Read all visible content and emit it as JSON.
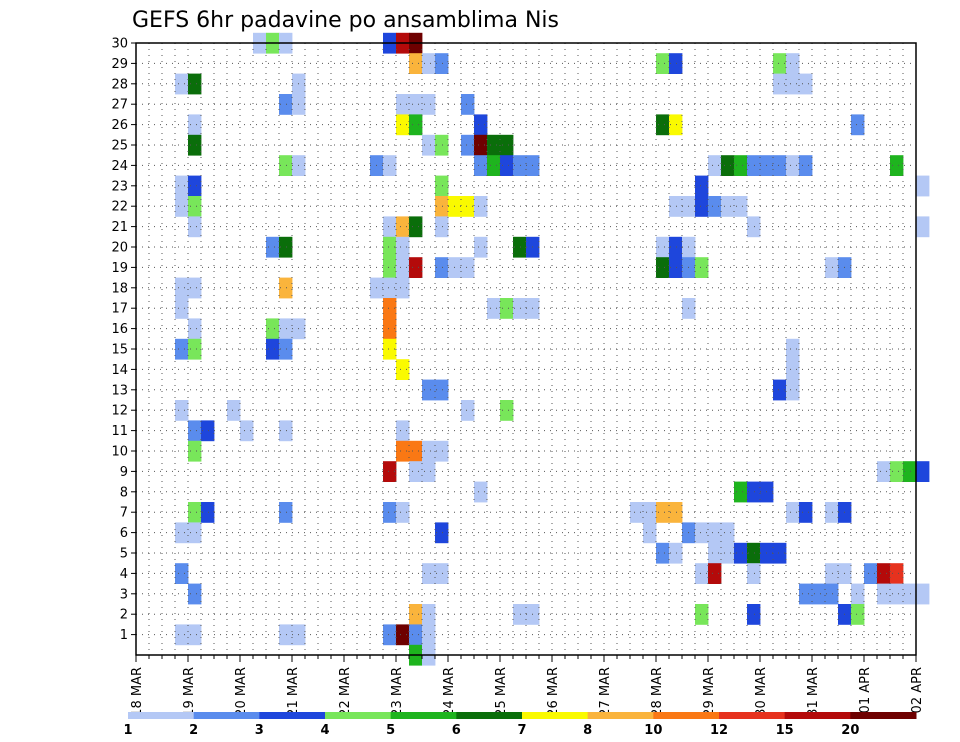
{
  "chart_data": {
    "type": "heatmap",
    "title": "GEFS 6hr padavine po ansamblima Nis",
    "xlabel": "",
    "ylabel": "",
    "x_ticks": [
      "18 MAR",
      "19 MAR",
      "20 MAR",
      "21 MAR",
      "22 MAR",
      "23 MAR",
      "24 MAR",
      "25 MAR",
      "26 MAR",
      "27 MAR",
      "28 MAR",
      "29 MAR",
      "30 MAR",
      "31 MAR",
      "01 APR",
      "02 APR"
    ],
    "x_range": [
      "18 MAR 00Z",
      "02 APR 00Z"
    ],
    "time_step_hours": 6,
    "y_ticks": [
      1,
      2,
      3,
      4,
      5,
      6,
      7,
      8,
      9,
      10,
      11,
      12,
      13,
      14,
      15,
      16,
      17,
      18,
      19,
      20,
      21,
      22,
      23,
      24,
      25,
      26,
      27,
      28,
      29,
      30
    ],
    "ylim": [
      0,
      30
    ],
    "grid": true,
    "colorbar": {
      "position": "bottom",
      "labels": [
        "1",
        "2",
        "3",
        "4",
        "5",
        "6",
        "7",
        "8",
        "10",
        "12",
        "15",
        "20"
      ],
      "colors": [
        "#b4c8f5",
        "#5a8ced",
        "#1e46dc",
        "#78e65a",
        "#1eb41e",
        "#0a6e0a",
        "#fafa00",
        "#fab43c",
        "#fa7814",
        "#e6321e",
        "#b40a0a",
        "#6e0000"
      ]
    },
    "cells_note": "each cell: [x index in 6h steps from 18 MAR 00Z, ensemble member, color class index into colorbar.colors]",
    "cells": [
      [
        9,
        30,
        0
      ],
      [
        10,
        30,
        3
      ],
      [
        11,
        30,
        0
      ],
      [
        19,
        30,
        2
      ],
      [
        20,
        30,
        10
      ],
      [
        21,
        30,
        11
      ],
      [
        21,
        29,
        7
      ],
      [
        22,
        29,
        0
      ],
      [
        23,
        29,
        1
      ],
      [
        40,
        29,
        3
      ],
      [
        41,
        29,
        2
      ],
      [
        49,
        29,
        3
      ],
      [
        50,
        29,
        0
      ],
      [
        3,
        28,
        0
      ],
      [
        4,
        28,
        5
      ],
      [
        12,
        28,
        0
      ],
      [
        49,
        28,
        0
      ],
      [
        50,
        28,
        0
      ],
      [
        51,
        28,
        0
      ],
      [
        11,
        27,
        1
      ],
      [
        12,
        27,
        0
      ],
      [
        20,
        27,
        0
      ],
      [
        21,
        27,
        0
      ],
      [
        22,
        27,
        0
      ],
      [
        25,
        27,
        1
      ],
      [
        4,
        26,
        0
      ],
      [
        20,
        26,
        6
      ],
      [
        21,
        26,
        4
      ],
      [
        26,
        26,
        2
      ],
      [
        40,
        26,
        5
      ],
      [
        41,
        26,
        6
      ],
      [
        55,
        26,
        1
      ],
      [
        4,
        25,
        5
      ],
      [
        22,
        25,
        0
      ],
      [
        23,
        25,
        3
      ],
      [
        25,
        25,
        1
      ],
      [
        26,
        25,
        11
      ],
      [
        27,
        25,
        5
      ],
      [
        28,
        25,
        5
      ],
      [
        11,
        24,
        3
      ],
      [
        12,
        24,
        0
      ],
      [
        18,
        24,
        1
      ],
      [
        19,
        24,
        0
      ],
      [
        26,
        24,
        1
      ],
      [
        27,
        24,
        4
      ],
      [
        28,
        24,
        2
      ],
      [
        29,
        24,
        1
      ],
      [
        30,
        24,
        1
      ],
      [
        44,
        24,
        0
      ],
      [
        45,
        24,
        5
      ],
      [
        46,
        24,
        4
      ],
      [
        47,
        24,
        1
      ],
      [
        48,
        24,
        1
      ],
      [
        49,
        24,
        1
      ],
      [
        50,
        24,
        0
      ],
      [
        51,
        24,
        1
      ],
      [
        58,
        24,
        4
      ],
      [
        3,
        23,
        0
      ],
      [
        4,
        23,
        2
      ],
      [
        23,
        23,
        3
      ],
      [
        43,
        23,
        2
      ],
      [
        60,
        23,
        0
      ],
      [
        3,
        22,
        0
      ],
      [
        4,
        22,
        3
      ],
      [
        23,
        22,
        7
      ],
      [
        24,
        22,
        6
      ],
      [
        25,
        22,
        6
      ],
      [
        26,
        22,
        0
      ],
      [
        41,
        22,
        0
      ],
      [
        42,
        22,
        0
      ],
      [
        43,
        22,
        2
      ],
      [
        44,
        22,
        1
      ],
      [
        45,
        22,
        0
      ],
      [
        46,
        22,
        0
      ],
      [
        23,
        21,
        0
      ],
      [
        4,
        21,
        0
      ],
      [
        19,
        21,
        0
      ],
      [
        20,
        21,
        7
      ],
      [
        21,
        21,
        5
      ],
      [
        47,
        21,
        0
      ],
      [
        60,
        21,
        0
      ],
      [
        10,
        20,
        1
      ],
      [
        11,
        20,
        5
      ],
      [
        19,
        20,
        3
      ],
      [
        20,
        20,
        0
      ],
      [
        26,
        20,
        0
      ],
      [
        29,
        20,
        5
      ],
      [
        30,
        20,
        2
      ],
      [
        40,
        20,
        0
      ],
      [
        41,
        20,
        2
      ],
      [
        42,
        20,
        0
      ],
      [
        19,
        19,
        3
      ],
      [
        20,
        19,
        0
      ],
      [
        21,
        19,
        10
      ],
      [
        23,
        19,
        1
      ],
      [
        24,
        19,
        0
      ],
      [
        25,
        19,
        0
      ],
      [
        40,
        19,
        5
      ],
      [
        41,
        19,
        2
      ],
      [
        42,
        19,
        1
      ],
      [
        43,
        19,
        3
      ],
      [
        53,
        19,
        0
      ],
      [
        54,
        19,
        1
      ],
      [
        3,
        18,
        0
      ],
      [
        4,
        18,
        0
      ],
      [
        11,
        18,
        7
      ],
      [
        18,
        18,
        0
      ],
      [
        19,
        18,
        0
      ],
      [
        20,
        18,
        0
      ],
      [
        3,
        17,
        0
      ],
      [
        19,
        17,
        8
      ],
      [
        27,
        17,
        0
      ],
      [
        28,
        17,
        3
      ],
      [
        29,
        17,
        0
      ],
      [
        30,
        17,
        0
      ],
      [
        42,
        17,
        0
      ],
      [
        4,
        16,
        0
      ],
      [
        10,
        16,
        3
      ],
      [
        11,
        16,
        0
      ],
      [
        12,
        16,
        0
      ],
      [
        19,
        16,
        8
      ],
      [
        3,
        15,
        1
      ],
      [
        4,
        15,
        3
      ],
      [
        10,
        15,
        2
      ],
      [
        11,
        15,
        1
      ],
      [
        19,
        15,
        6
      ],
      [
        50,
        15,
        0
      ],
      [
        20,
        14,
        6
      ],
      [
        50,
        14,
        0
      ],
      [
        22,
        13,
        1
      ],
      [
        23,
        13,
        1
      ],
      [
        49,
        13,
        2
      ],
      [
        50,
        13,
        0
      ],
      [
        3,
        12,
        0
      ],
      [
        7,
        12,
        0
      ],
      [
        25,
        12,
        0
      ],
      [
        28,
        12,
        3
      ],
      [
        4,
        11,
        1
      ],
      [
        5,
        11,
        2
      ],
      [
        8,
        11,
        0
      ],
      [
        11,
        11,
        0
      ],
      [
        20,
        11,
        0
      ],
      [
        4,
        10,
        3
      ],
      [
        20,
        10,
        8
      ],
      [
        21,
        10,
        8
      ],
      [
        22,
        10,
        0
      ],
      [
        23,
        10,
        0
      ],
      [
        19,
        9,
        10
      ],
      [
        22,
        9,
        0
      ],
      [
        21,
        9,
        0
      ],
      [
        57,
        9,
        0
      ],
      [
        58,
        9,
        3
      ],
      [
        59,
        9,
        4
      ],
      [
        60,
        9,
        2
      ],
      [
        26,
        8,
        0
      ],
      [
        46,
        8,
        4
      ],
      [
        47,
        8,
        2
      ],
      [
        48,
        8,
        2
      ],
      [
        4,
        7,
        3
      ],
      [
        5,
        7,
        2
      ],
      [
        11,
        7,
        1
      ],
      [
        19,
        7,
        1
      ],
      [
        20,
        7,
        0
      ],
      [
        38,
        7,
        0
      ],
      [
        39,
        7,
        0
      ],
      [
        40,
        7,
        7
      ],
      [
        41,
        7,
        7
      ],
      [
        50,
        7,
        0
      ],
      [
        51,
        7,
        2
      ],
      [
        53,
        7,
        0
      ],
      [
        54,
        7,
        2
      ],
      [
        3,
        6,
        0
      ],
      [
        4,
        6,
        0
      ],
      [
        23,
        6,
        2
      ],
      [
        39,
        6,
        0
      ],
      [
        42,
        6,
        1
      ],
      [
        43,
        6,
        0
      ],
      [
        44,
        6,
        0
      ],
      [
        45,
        6,
        0
      ],
      [
        40,
        5,
        1
      ],
      [
        41,
        5,
        0
      ],
      [
        44,
        5,
        0
      ],
      [
        45,
        5,
        0
      ],
      [
        46,
        5,
        2
      ],
      [
        47,
        5,
        5
      ],
      [
        48,
        5,
        2
      ],
      [
        49,
        5,
        2
      ],
      [
        3,
        4,
        1
      ],
      [
        22,
        4,
        0
      ],
      [
        23,
        4,
        0
      ],
      [
        43,
        4,
        0
      ],
      [
        44,
        4,
        10
      ],
      [
        47,
        4,
        0
      ],
      [
        53,
        4,
        0
      ],
      [
        54,
        4,
        0
      ],
      [
        56,
        4,
        1
      ],
      [
        57,
        4,
        10
      ],
      [
        58,
        4,
        9
      ],
      [
        4,
        3,
        1
      ],
      [
        51,
        3,
        1
      ],
      [
        52,
        3,
        1
      ],
      [
        53,
        3,
        1
      ],
      [
        55,
        3,
        0
      ],
      [
        57,
        3,
        0
      ],
      [
        58,
        3,
        0
      ],
      [
        59,
        3,
        0
      ],
      [
        60,
        3,
        0
      ],
      [
        21,
        2,
        7
      ],
      [
        22,
        2,
        0
      ],
      [
        29,
        2,
        0
      ],
      [
        30,
        2,
        0
      ],
      [
        43,
        2,
        3
      ],
      [
        47,
        2,
        2
      ],
      [
        54,
        2,
        2
      ],
      [
        55,
        2,
        3
      ],
      [
        3,
        1,
        0
      ],
      [
        4,
        1,
        0
      ],
      [
        11,
        1,
        0
      ],
      [
        12,
        1,
        0
      ],
      [
        19,
        1,
        1
      ],
      [
        20,
        1,
        11
      ],
      [
        21,
        1,
        1
      ],
      [
        22,
        1,
        0
      ],
      [
        21,
        0,
        4
      ],
      [
        22,
        0,
        0
      ]
    ]
  }
}
